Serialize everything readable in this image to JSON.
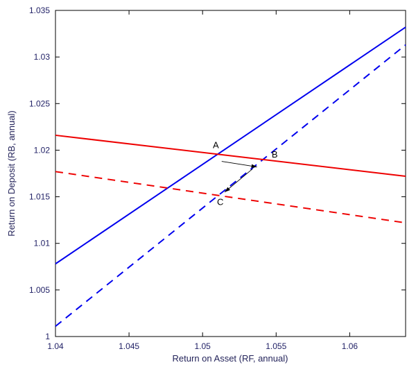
{
  "chart_data": {
    "type": "line",
    "title": "",
    "xlabel": "Return on Asset (RF, annual)",
    "ylabel": "Return on Deposit (RB, annual)",
    "xlim": [
      1.04,
      1.0638
    ],
    "ylim": [
      1.0,
      1.035
    ],
    "grid": false,
    "legend_position": "none",
    "axis_color": "#000000",
    "tick_label_color": "#1e1e64",
    "xticks": [
      {
        "value": 1.04,
        "label": "1.04"
      },
      {
        "value": 1.045,
        "label": "1.045"
      },
      {
        "value": 1.05,
        "label": "1.05"
      },
      {
        "value": 1.055,
        "label": "1.055"
      },
      {
        "value": 1.06,
        "label": "1.06"
      }
    ],
    "yticks": [
      {
        "value": 1.0,
        "label": "1"
      },
      {
        "value": 1.005,
        "label": "1.005"
      },
      {
        "value": 1.01,
        "label": "1.01"
      },
      {
        "value": 1.015,
        "label": "1.015"
      },
      {
        "value": 1.02,
        "label": "1.02"
      },
      {
        "value": 1.025,
        "label": "1.025"
      },
      {
        "value": 1.03,
        "label": "1.03"
      },
      {
        "value": 1.035,
        "label": "1.035"
      }
    ],
    "series": [
      {
        "name": "blue-solid-upward-line",
        "color": "#0000ee",
        "style": "solid",
        "width": 2,
        "x": [
          1.04,
          1.0638
        ],
        "y": [
          1.0078,
          1.0332
        ]
      },
      {
        "name": "blue-dashed-upward-line",
        "color": "#0000ee",
        "style": "dashed",
        "width": 2,
        "x": [
          1.04,
          1.0638
        ],
        "y": [
          1.0011,
          1.0313
        ]
      },
      {
        "name": "red-solid-downward-line",
        "color": "#ee0000",
        "style": "solid",
        "width": 2,
        "x": [
          1.04,
          1.0638
        ],
        "y": [
          1.0216,
          1.0172
        ]
      },
      {
        "name": "red-dashed-downward-line",
        "color": "#ee0000",
        "style": "dashed",
        "width": 2,
        "x": [
          1.04,
          1.0638
        ],
        "y": [
          1.0177,
          1.0122
        ]
      }
    ],
    "annotations": [
      {
        "label": "A",
        "point_x": 1.051,
        "point_y": 1.0196,
        "text_x": 1.0509,
        "text_y": 1.0202
      },
      {
        "label": "B",
        "point_x": 1.0541,
        "point_y": 1.019,
        "text_x": 1.0549,
        "text_y": 1.0192
      },
      {
        "label": "C",
        "point_x": 1.0511,
        "point_y": 1.0152,
        "text_x": 1.0512,
        "text_y": 1.0141
      }
    ],
    "arrows": [
      {
        "name": "arrow-a-to-b",
        "from": [
          1.0513,
          1.0188
        ],
        "to": [
          1.0537,
          1.0182
        ],
        "color": "#000000"
      },
      {
        "name": "arrow-b-to-c",
        "from": [
          1.0534,
          1.018
        ],
        "to": [
          1.0515,
          1.0155
        ],
        "color": "#000000"
      }
    ]
  }
}
